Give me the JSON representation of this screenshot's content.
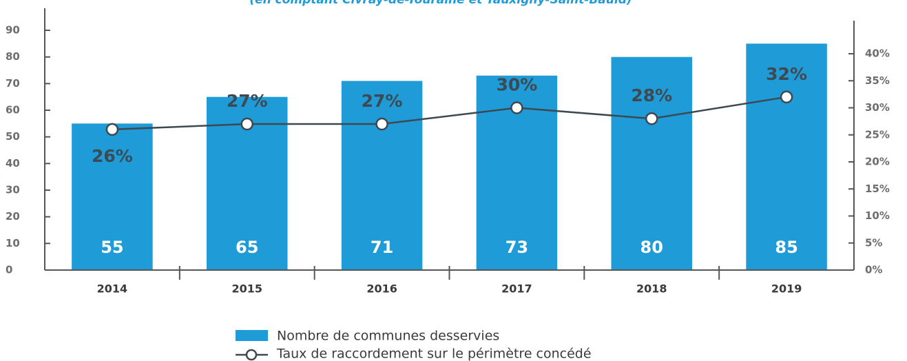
{
  "chart_data": {
    "type": "bar-line",
    "title": "(en comptant Civray-de-Touraine et Tauxigny-Saint-Bauld)",
    "categories": [
      "2014",
      "2015",
      "2016",
      "2017",
      "2018",
      "2019"
    ],
    "series": [
      {
        "name": "Nombre de communes desservies",
        "color": "#1f9bd7",
        "values": [
          55,
          65,
          71,
          73,
          80,
          85
        ]
      },
      {
        "name": "Taux de raccordement sur le périmètre concédé",
        "color": "#3d4850",
        "axis": "y2",
        "values": [
          26,
          27,
          27,
          30,
          28,
          32
        ],
        "value_labels": [
          "26%",
          "27%",
          "27%",
          "30%",
          "28%",
          "32%"
        ]
      }
    ],
    "ylim": [
      0,
      90
    ],
    "yticks": [
      0,
      10,
      20,
      30,
      40,
      50,
      60,
      70,
      80,
      90
    ],
    "y2lim": [
      0,
      40
    ],
    "y2ticks": [
      {
        "value": 0,
        "label": "0%"
      },
      {
        "value": 5,
        "label": "5%"
      },
      {
        "value": 10,
        "label": "10%"
      },
      {
        "value": 15,
        "label": "15%"
      },
      {
        "value": 20,
        "label": "20%"
      },
      {
        "value": 25,
        "label": "25%"
      },
      {
        "value": 30,
        "label": "30%"
      },
      {
        "value": 35,
        "label": "35%"
      },
      {
        "value": 40,
        "label": "40%"
      }
    ]
  }
}
